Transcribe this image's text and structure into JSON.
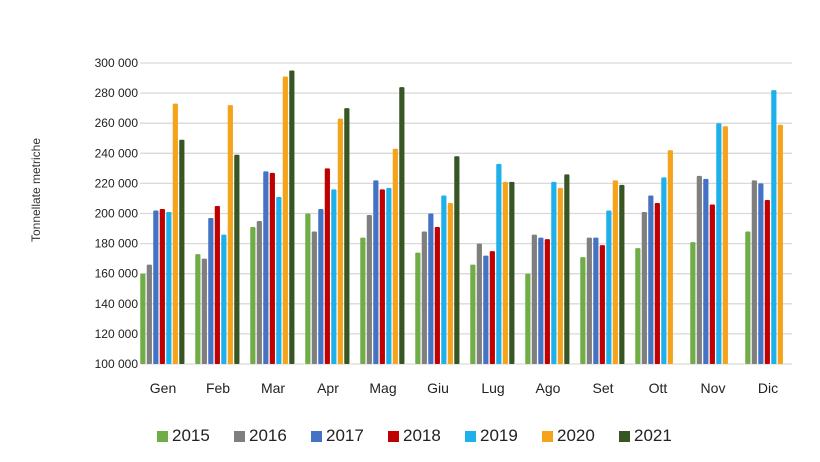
{
  "chart_data": {
    "type": "bar",
    "title": "",
    "xlabel": "",
    "ylabel": "Tonnellate metriche",
    "ylim": [
      100000,
      300000
    ],
    "yticks": [
      100000,
      120000,
      140000,
      160000,
      180000,
      200000,
      220000,
      240000,
      260000,
      280000,
      300000
    ],
    "ytick_labels": [
      "100 000",
      "120 000",
      "140 000",
      "160 000",
      "180 000",
      "200 000",
      "220 000",
      "240 000",
      "260 000",
      "280 000",
      "300 000"
    ],
    "grid": true,
    "legend_position": "bottom",
    "categories": [
      "Gen",
      "Feb",
      "Mar",
      "Apr",
      "Mag",
      "Giu",
      "Lug",
      "Ago",
      "Set",
      "Ott",
      "Nov",
      "Dic"
    ],
    "series": [
      {
        "name": "2015",
        "color": "#70ad47",
        "values": [
          160000,
          173000,
          191000,
          200000,
          184000,
          174000,
          166000,
          160000,
          171000,
          177000,
          181000,
          188000
        ]
      },
      {
        "name": "2016",
        "color": "#7f7f7f",
        "values": [
          166000,
          170000,
          195000,
          188000,
          199000,
          188000,
          180000,
          186000,
          184000,
          201000,
          225000,
          222000
        ]
      },
      {
        "name": "2017",
        "color": "#4472c4",
        "values": [
          202000,
          197000,
          228000,
          203000,
          222000,
          200000,
          172000,
          184000,
          184000,
          212000,
          223000,
          220000
        ]
      },
      {
        "name": "2018",
        "color": "#c00000",
        "values": [
          203000,
          205000,
          227000,
          230000,
          216000,
          191000,
          175000,
          183000,
          179000,
          207000,
          206000,
          209000
        ]
      },
      {
        "name": "2019",
        "color": "#1eb0ea",
        "values": [
          201000,
          186000,
          211000,
          216000,
          217000,
          212000,
          233000,
          221000,
          202000,
          224000,
          260000,
          282000
        ]
      },
      {
        "name": "2020",
        "color": "#f5a31a",
        "values": [
          273000,
          272000,
          291000,
          263000,
          243000,
          207000,
          221000,
          217000,
          222000,
          242000,
          258000,
          259000
        ]
      },
      {
        "name": "2021",
        "color": "#375623",
        "values": [
          249000,
          239000,
          295000,
          270000,
          284000,
          238000,
          221000,
          226000,
          219000,
          null,
          null,
          null
        ]
      }
    ]
  }
}
